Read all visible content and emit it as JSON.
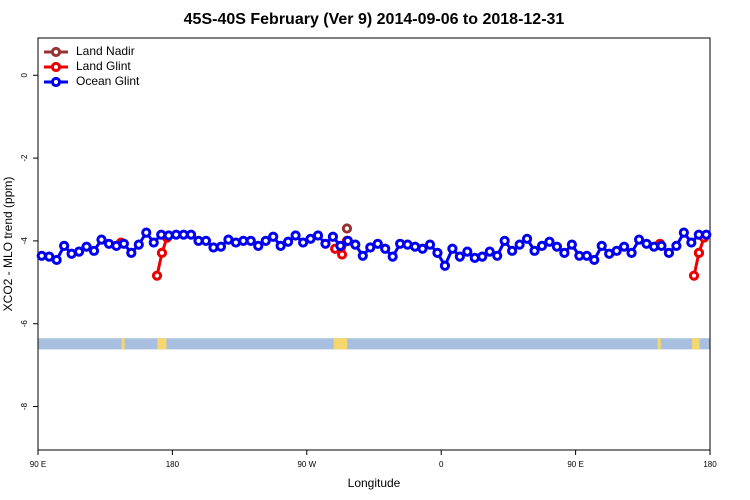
{
  "chart_data": {
    "type": "line",
    "title": "45S-40S February (Ver 9)   2014-09-06 to 2018-12-31",
    "xlabel": "Longitude",
    "ylabel": "XCO2 - MLO trend (ppm)",
    "xlim": [
      90,
      540
    ],
    "xticks": [
      {
        "value": 90,
        "label": "90 E"
      },
      180,
      {
        "value": 270,
        "label": "90 W"
      },
      {
        "value": 360,
        "label": "0"
      },
      {
        "value": 450,
        "label": "90 E"
      },
      {
        "value": 540,
        "label": "180"
      }
    ],
    "ylim": [
      -9.05,
      0.9
    ],
    "yticks": [
      0,
      -2,
      -4,
      -6,
      -8
    ],
    "legend": "top-left",
    "land_strip": {
      "ylim": [
        -6.35,
        -6.62
      ],
      "ocean_color": "#a8bfe0",
      "land_color": "#f5d76e",
      "land": [
        [
          146,
          148
        ],
        [
          170,
          176
        ],
        [
          288,
          297
        ],
        [
          505,
          507
        ],
        [
          528,
          533
        ]
      ]
    },
    "series": [
      {
        "name": "Land Nadir",
        "color": "#993333",
        "x": [
          296.9,
          null,
          532.6
        ],
        "values": [
          -3.7,
          null,
          -4.29
        ]
      },
      {
        "name": "Land Glint",
        "color": "#ee0000",
        "x": [
          145.6,
          null,
          169.7,
          173,
          176.4,
          null,
          289,
          293.6,
          296.9,
          null,
          506.5,
          null,
          529.3,
          532.6,
          536
        ],
        "values": [
          -4.04,
          null,
          -4.84,
          -4.29,
          -3.92,
          null,
          -4.19,
          -4.33,
          -4.0,
          null,
          -4.07,
          null,
          -4.84,
          -4.29,
          -3.92
        ]
      },
      {
        "name": "Ocean Glint",
        "color": "#0000ee",
        "x": [
          92.5,
          97.5,
          102.5,
          107.5,
          112.5,
          117.5,
          122.5,
          127.5,
          132.5,
          137.5,
          142.5,
          147.5,
          152.5,
          157.5,
          162.5,
          167.5,
          172.5,
          177.5,
          182.5,
          187.5,
          192.5,
          197.5,
          202.5,
          207.5,
          212.5,
          217.5,
          222.5,
          227.5,
          232.5,
          237.5,
          242.5,
          247.5,
          252.5,
          257.5,
          262.5,
          267.5,
          272.5,
          277.5,
          282.5,
          287.5,
          292.5,
          297.5,
          302.5,
          307.5,
          312.5,
          317.5,
          322.5,
          327.5,
          332.5,
          337.5,
          342.5,
          347.5,
          352.5,
          357.5,
          362.5,
          367.5,
          372.5,
          377.5,
          382.5,
          387.5,
          392.5,
          397.5,
          402.5,
          407.5,
          412.5,
          417.5,
          422.5,
          427.5,
          432.5,
          437.5,
          442.5,
          447.5,
          452.5,
          457.5,
          462.5,
          467.5,
          472.5,
          477.5,
          482.5,
          487.5,
          492.5,
          497.5,
          502.5,
          507.5,
          512.5,
          517.5,
          522.5,
          527.5,
          532.5,
          537.5
        ],
        "values": [
          -4.36,
          -4.38,
          -4.46,
          -4.12,
          -4.31,
          -4.26,
          -4.14,
          -4.24,
          -3.97,
          -4.07,
          -4.12,
          -4.07,
          -4.29,
          -4.09,
          -3.8,
          -4.04,
          -3.85,
          -3.87,
          -3.85,
          -3.85,
          -3.85,
          -4.0,
          -4.0,
          -4.16,
          -4.14,
          -3.97,
          -4.04,
          -4.0,
          -4.0,
          -4.12,
          -4.0,
          -3.9,
          -4.12,
          -4.02,
          -3.87,
          -4.04,
          -3.95,
          -3.87,
          -4.07,
          -3.9,
          -4.12,
          -4.0,
          -4.09,
          -4.36,
          -4.16,
          -4.07,
          -4.19,
          -4.38,
          -4.07,
          -4.09,
          -4.14,
          -4.19,
          -4.09,
          -4.29,
          -4.6,
          -4.19,
          -4.38,
          -4.26,
          -4.41,
          -4.38,
          -4.26,
          -4.36,
          -4.0,
          -4.24,
          -4.09,
          -3.95,
          -4.24,
          -4.12,
          -4.02,
          -4.14,
          -4.29,
          -4.09,
          -4.36,
          -4.36,
          -4.46,
          -4.12,
          -4.31,
          -4.24,
          -4.14,
          -4.29,
          -3.97,
          -4.07,
          -4.14,
          -4.12,
          -4.29,
          -4.12,
          -3.8,
          -4.04,
          -3.85,
          -3.85
        ]
      }
    ]
  }
}
